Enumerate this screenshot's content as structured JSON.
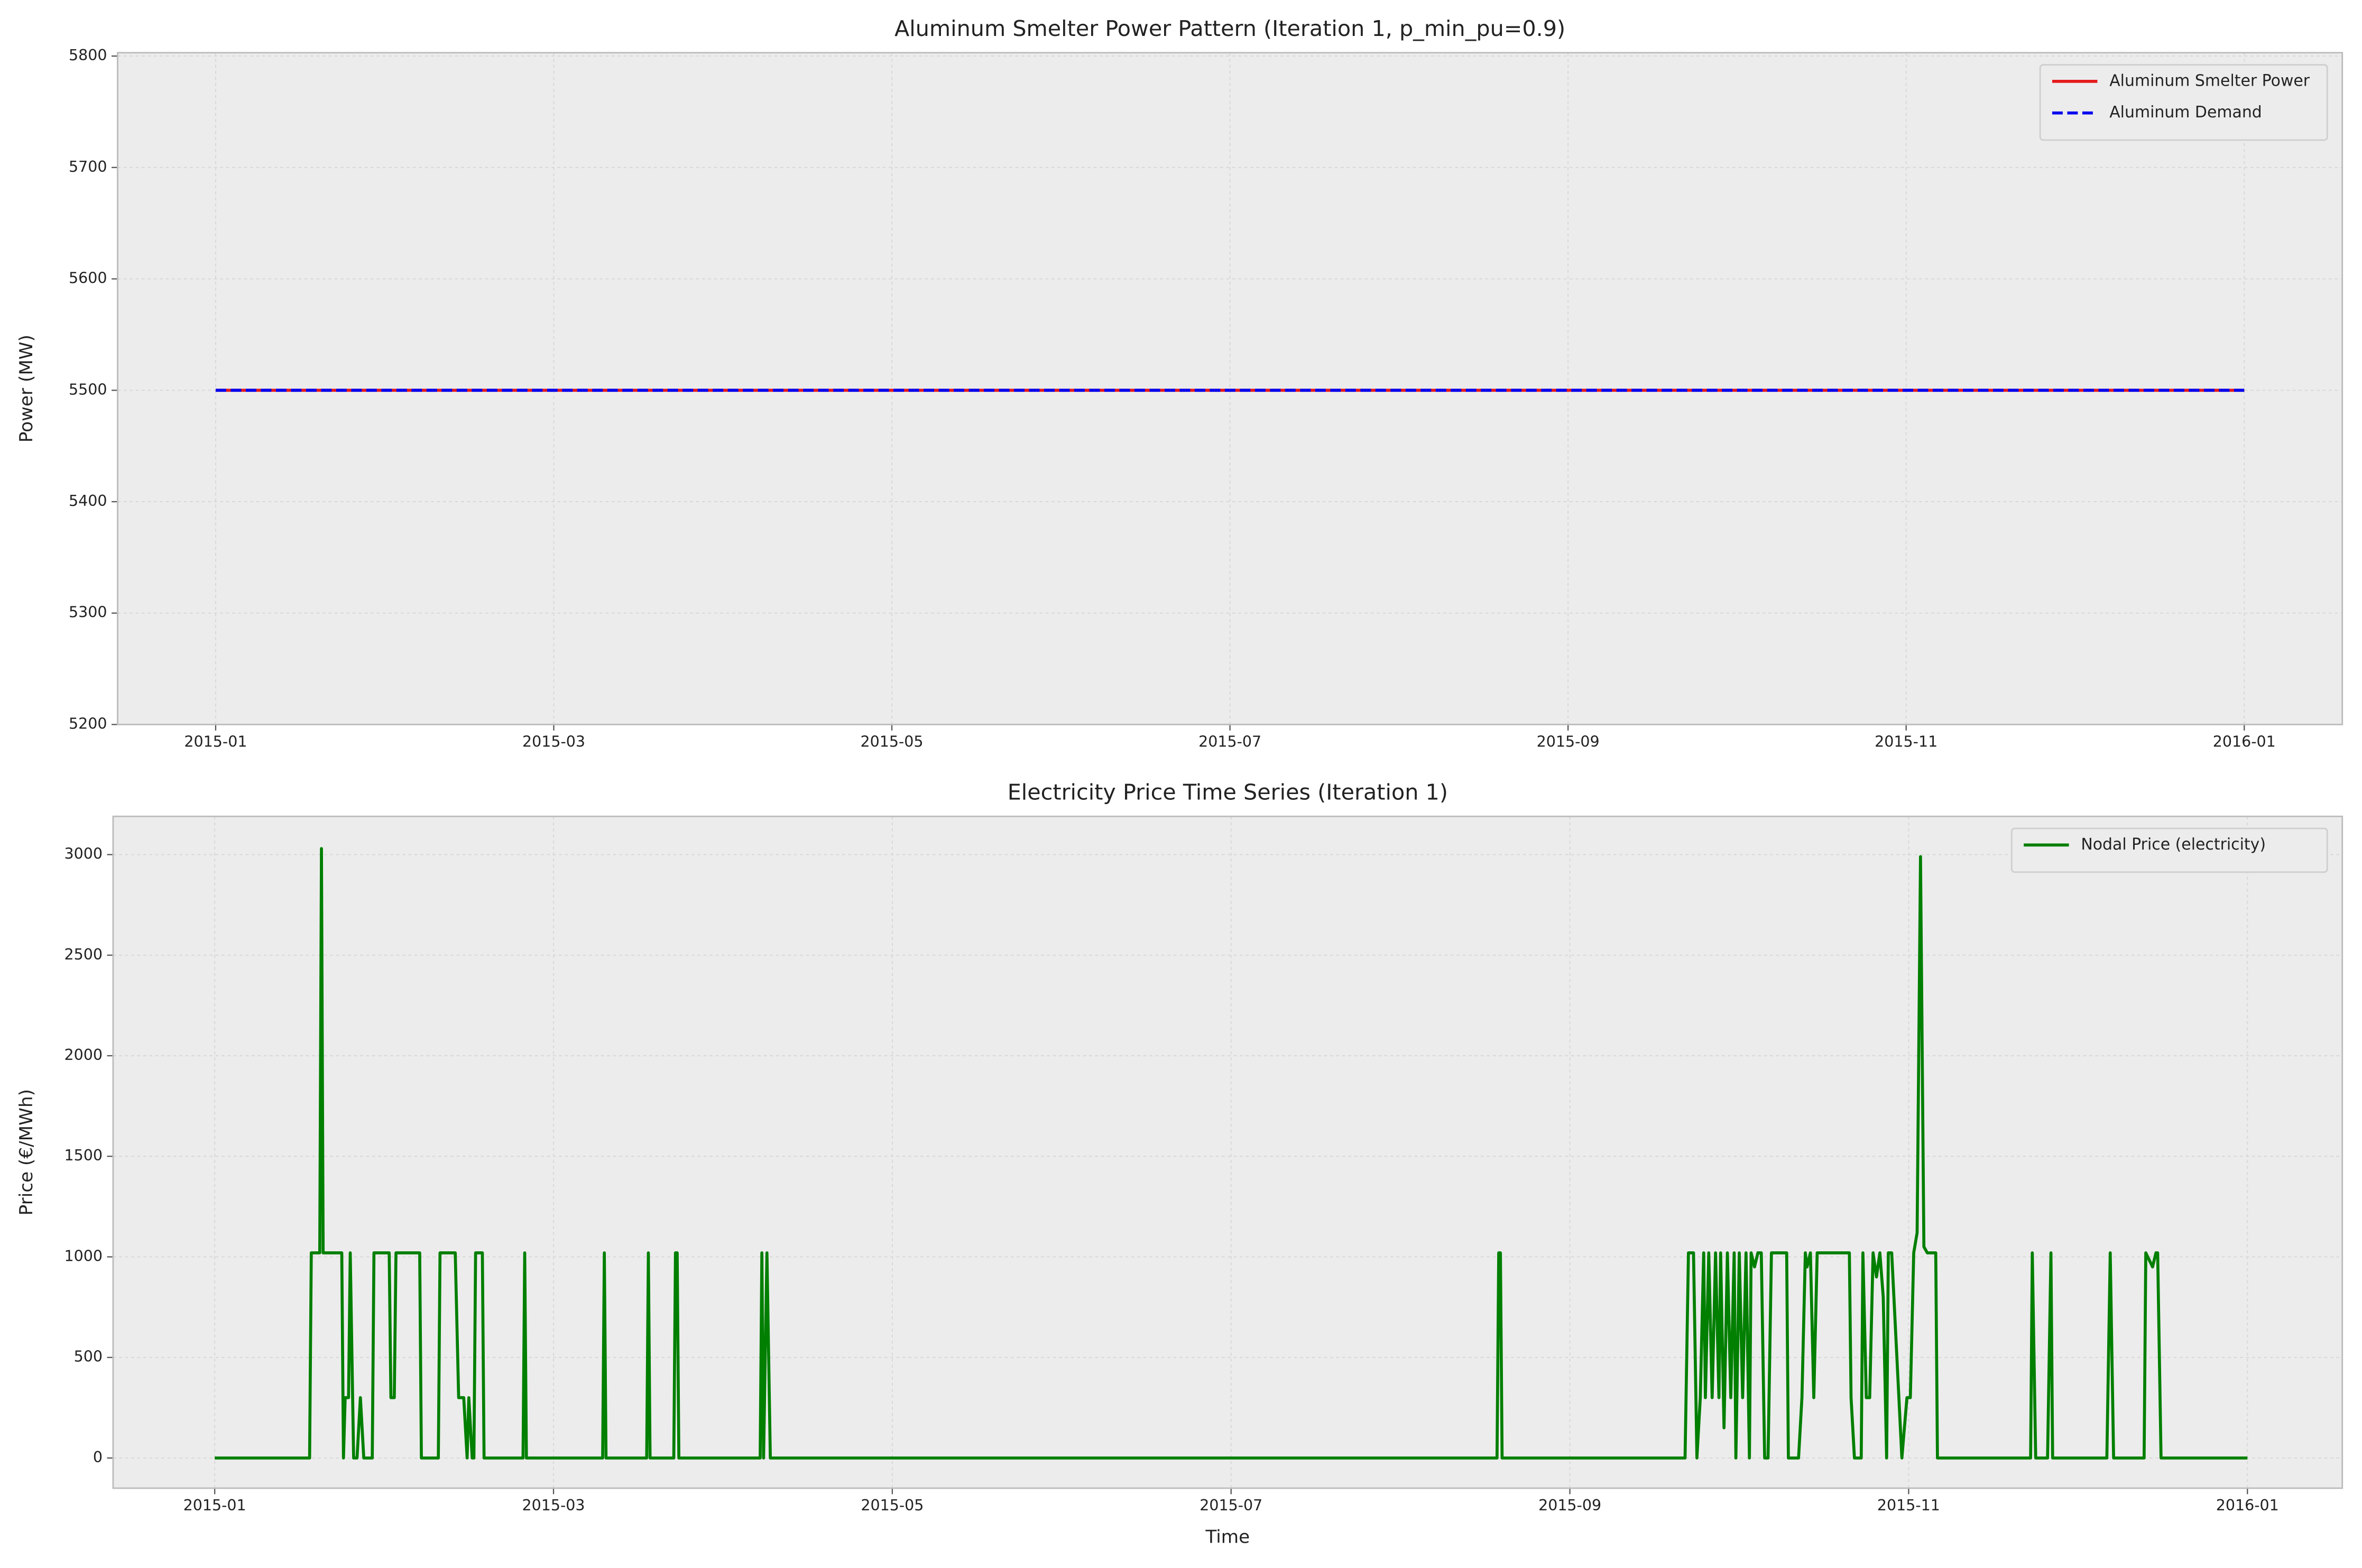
{
  "chart_data": [
    {
      "type": "line",
      "title": "Aluminum Smelter Power Pattern (Iteration 1, p_min_pu=0.9)",
      "ylabel": "Power (MW)",
      "x": [
        0,
        12
      ],
      "series": [
        {
          "name": "Aluminum Smelter Power",
          "color": "#e41a1c",
          "dash": "solid",
          "values": [
            5500,
            5500
          ]
        },
        {
          "name": "Aluminum Demand",
          "color": "#0000ee",
          "dash": "dashed",
          "values": [
            5500,
            5500
          ]
        }
      ],
      "xlim": [
        -0.58,
        12.58
      ],
      "ylim": [
        5200,
        5803
      ],
      "xticks": [
        {
          "value": 0,
          "label": "2015-01"
        },
        {
          "value": 2,
          "label": "2015-03"
        },
        {
          "value": 4,
          "label": "2015-05"
        },
        {
          "value": 6,
          "label": "2015-07"
        },
        {
          "value": 8,
          "label": "2015-09"
        },
        {
          "value": 10,
          "label": "2015-11"
        },
        {
          "value": 12,
          "label": "2016-01"
        }
      ],
      "yticks": [
        5200,
        5300,
        5400,
        5500,
        5600,
        5700,
        5800
      ],
      "grid": true,
      "legend": "upper right"
    },
    {
      "type": "line",
      "title": "Electricity Price Time Series (Iteration 1)",
      "xlabel": "Time",
      "ylabel": "Price (€/MWh)",
      "x": [
        0,
        0.56,
        0.57,
        0.62,
        0.63,
        0.64,
        0.75,
        0.76,
        0.77,
        0.79,
        0.8,
        0.82,
        0.84,
        0.86,
        0.88,
        0.93,
        0.94,
        1.03,
        1.04,
        1.06,
        1.07,
        1.21,
        1.22,
        1.32,
        1.33,
        1.42,
        1.44,
        1.47,
        1.49,
        1.5,
        1.52,
        1.53,
        1.54,
        1.58,
        1.59,
        1.82,
        1.83,
        1.84,
        2.29,
        2.3,
        2.31,
        2.55,
        2.56,
        2.57,
        2.71,
        2.72,
        2.73,
        2.74,
        3.22,
        3.23,
        3.24,
        3.26,
        3.28,
        7.57,
        7.58,
        7.59,
        7.6,
        8.68,
        8.7,
        8.73,
        8.75,
        8.77,
        8.79,
        8.8,
        8.82,
        8.84,
        8.86,
        8.88,
        8.89,
        8.91,
        8.93,
        8.95,
        8.97,
        8.98,
        9,
        9.02,
        9.04,
        9.06,
        9.07,
        9.09,
        9.11,
        9.13,
        9.15,
        9.17,
        9.19,
        9.28,
        9.29,
        9.35,
        9.37,
        9.39,
        9.4,
        9.42,
        9.44,
        9.46,
        9.65,
        9.66,
        9.68,
        9.72,
        9.73,
        9.75,
        9.77,
        9.79,
        9.81,
        9.83,
        9.85,
        9.87,
        9.88,
        9.9,
        9.96,
        9.99,
        10.01,
        10.03,
        10.05,
        10.07,
        10.09,
        10.11,
        10.16,
        10.17,
        10.72,
        10.73,
        10.75,
        10.82,
        10.84,
        10.85,
        11.17,
        11.19,
        11.21,
        11.39,
        11.4,
        11.44,
        11.46,
        11.47,
        11.49,
        12
      ],
      "series": [
        {
          "name": "Nodal Price (electricity)",
          "color": "#007f00",
          "dash": "solid",
          "values": [
            0,
            0,
            1020,
            1020,
            3030,
            1020,
            1020,
            0,
            300,
            300,
            1020,
            0,
            0,
            300,
            0,
            0,
            1020,
            1020,
            300,
            300,
            1020,
            1020,
            0,
            0,
            1020,
            1020,
            300,
            300,
            0,
            300,
            0,
            0,
            1020,
            1020,
            0,
            0,
            1020,
            0,
            0,
            1020,
            0,
            0,
            1020,
            0,
            0,
            1020,
            1020,
            0,
            0,
            1020,
            0,
            1020,
            0,
            0,
            1020,
            1020,
            0,
            0,
            1020,
            1020,
            0,
            300,
            1020,
            300,
            1020,
            300,
            1020,
            300,
            1020,
            150,
            1020,
            300,
            1020,
            0,
            1020,
            300,
            1020,
            0,
            1020,
            950,
            1020,
            1020,
            0,
            0,
            1020,
            1020,
            0,
            0,
            300,
            1020,
            950,
            1020,
            300,
            1020,
            1020,
            300,
            0,
            0,
            1020,
            300,
            300,
            1020,
            900,
            1020,
            800,
            0,
            1020,
            1020,
            0,
            300,
            300,
            1020,
            1120,
            2990,
            1050,
            1020,
            1020,
            0,
            0,
            1020,
            0,
            0,
            1020,
            0,
            0,
            1020,
            0,
            0,
            1020,
            950,
            1020,
            1020,
            0,
            0
          ]
        }
      ],
      "xlim": [
        -0.6,
        12.56
      ],
      "ylim": [
        -150,
        3190
      ],
      "xticks": [
        {
          "value": 0,
          "label": "2015-01"
        },
        {
          "value": 2,
          "label": "2015-03"
        },
        {
          "value": 4,
          "label": "2015-05"
        },
        {
          "value": 6,
          "label": "2015-07"
        },
        {
          "value": 8,
          "label": "2015-09"
        },
        {
          "value": 10,
          "label": "2015-11"
        },
        {
          "value": 12,
          "label": "2016-01"
        }
      ],
      "yticks": [
        0,
        500,
        1000,
        1500,
        2000,
        2500,
        3000
      ],
      "grid": true,
      "legend": "upper right"
    }
  ]
}
